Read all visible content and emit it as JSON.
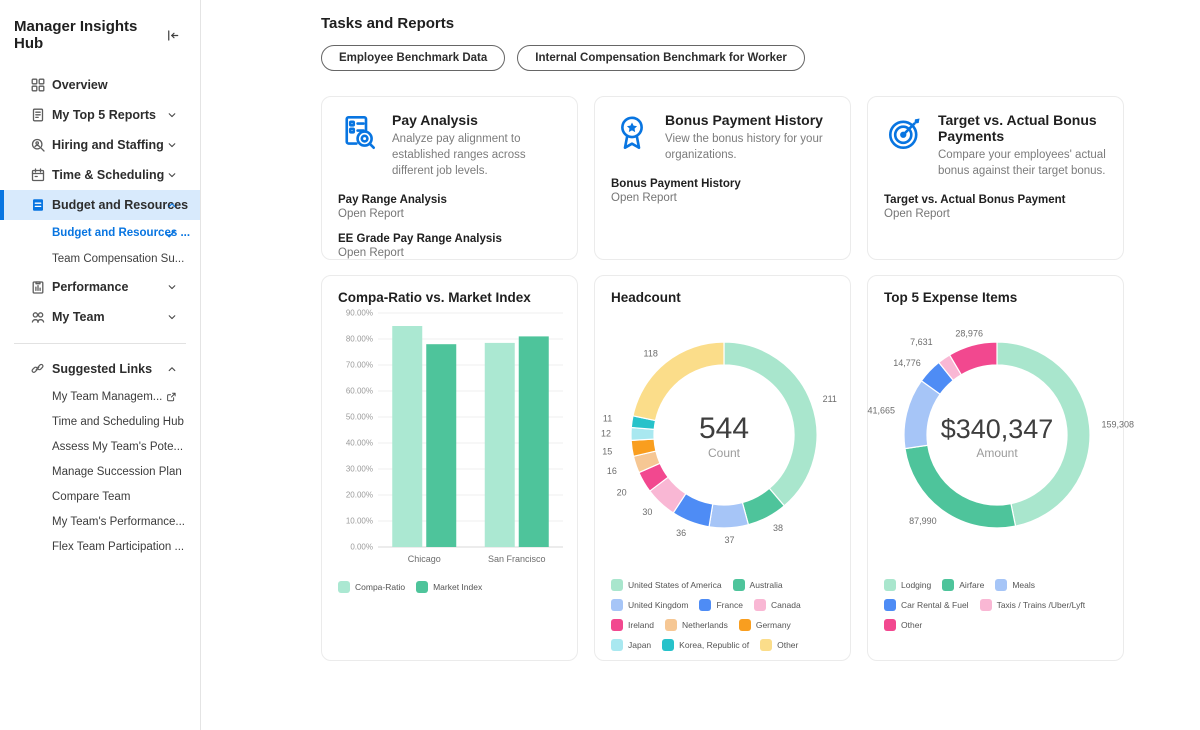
{
  "colors": {
    "accent": "#0875e1",
    "selected_bg": "#d8eafc"
  },
  "sidebar": {
    "title": "Manager Insights Hub",
    "collapse_icon": "collapse-left-icon",
    "nav": [
      {
        "label": "Overview",
        "icon": "grid-icon",
        "chevron": null,
        "selected": false
      },
      {
        "label": "My Top 5 Reports",
        "icon": "report-icon",
        "chevron": "down",
        "selected": false
      },
      {
        "label": "Hiring and Staffing",
        "icon": "search-person-icon",
        "chevron": "down",
        "selected": false
      },
      {
        "label": "Time & Scheduling",
        "icon": "calendar-icon",
        "chevron": "down",
        "selected": false
      },
      {
        "label": "Budget and Resources",
        "icon": "document-icon",
        "chevron": "up",
        "selected": true,
        "children": [
          {
            "label": "Budget and Resources ...",
            "active": true,
            "check": true
          },
          {
            "label": "Team Compensation Su...",
            "active": false,
            "check": false
          }
        ]
      },
      {
        "label": "Performance",
        "icon": "clipboard-icon",
        "chevron": "down",
        "selected": false
      },
      {
        "label": "My Team",
        "icon": "people-icon",
        "chevron": "down",
        "selected": false
      }
    ],
    "suggested": {
      "label": "Suggested Links",
      "icon": "link-icon",
      "chevron": "up",
      "links": [
        {
          "label": "My Team Managem...",
          "external": true
        },
        {
          "label": "Time and Scheduling Hub",
          "external": false
        },
        {
          "label": "Assess My Team's Pote...",
          "external": false
        },
        {
          "label": "Manage Succession Plan",
          "external": false
        },
        {
          "label": "Compare Team",
          "external": false
        },
        {
          "label": "My Team's Performance...",
          "external": false
        },
        {
          "label": "Flex Team Participation ...",
          "external": false
        }
      ]
    }
  },
  "main": {
    "heading": "Tasks and Reports",
    "task_buttons": [
      {
        "label": "Employee Benchmark Data"
      },
      {
        "label": "Internal Compensation Benchmark for Worker"
      }
    ],
    "report_cards": [
      {
        "icon": "pay-analysis-icon",
        "title": "Pay Analysis",
        "description": "Analyze pay alignment to established ranges across different job levels.",
        "reports": [
          {
            "name": "Pay Range Analysis",
            "action": "Open Report"
          },
          {
            "name": "EE Grade Pay Range Analysis",
            "action": "Open Report"
          }
        ]
      },
      {
        "icon": "award-icon",
        "title": "Bonus Payment History",
        "description": "View the bonus history for your organizations.",
        "reports": [
          {
            "name": "Bonus Payment History",
            "action": "Open Report"
          }
        ]
      },
      {
        "icon": "target-icon",
        "title": "Target vs. Actual Bonus Payments",
        "description": "Compare your employees' actual bonus against their target bonus.",
        "reports": [
          {
            "name": "Target vs. Actual Bonus Payment",
            "action": "Open Report"
          }
        ]
      }
    ]
  },
  "chart_data": [
    {
      "type": "bar",
      "title": "Compa-Ratio vs. Market Index",
      "categories": [
        "Chicago",
        "San Francisco"
      ],
      "series": [
        {
          "name": "Compa-Ratio",
          "color": "#abe8d2",
          "values": [
            85,
            78.5
          ]
        },
        {
          "name": "Market Index",
          "color": "#4ec49b",
          "values": [
            78,
            81
          ]
        }
      ],
      "ylim": [
        0,
        90
      ],
      "ytick_step": 10,
      "yticks": [
        "0.00%",
        "10.00%",
        "20.00%",
        "30.00%",
        "40.00%",
        "50.00%",
        "60.00%",
        "70.00%",
        "80.00%",
        "90.00%"
      ],
      "grid": true,
      "legend_position": "bottom"
    },
    {
      "type": "pie",
      "title": "Headcount",
      "center_value": "544",
      "center_label": "Count",
      "center_size": 30,
      "slices": [
        {
          "label": "United States of America",
          "value": 211,
          "display": "211",
          "color": "#a9e6cd"
        },
        {
          "label": "Australia",
          "value": 38,
          "display": "38",
          "color": "#4ec49b"
        },
        {
          "label": "United Kingdom",
          "value": 37,
          "display": "37",
          "color": "#a6c5f7"
        },
        {
          "label": "France",
          "value": 36,
          "display": "36",
          "color": "#4e8cf5"
        },
        {
          "label": "Canada",
          "value": 30,
          "display": "30",
          "color": "#f9b7d4"
        },
        {
          "label": "Ireland",
          "value": 20,
          "display": "20",
          "color": "#f2488f"
        },
        {
          "label": "Netherlands",
          "value": 16,
          "display": "16",
          "color": "#f6c794"
        },
        {
          "label": "Germany",
          "value": 15,
          "display": "15",
          "color": "#f99e1f"
        },
        {
          "label": "Japan",
          "value": 12,
          "display": "12",
          "color": "#a9e8f0"
        },
        {
          "label": "Korea, Republic of",
          "value": 11,
          "display": "11",
          "color": "#27c2ca"
        },
        {
          "label": "Other",
          "value": 118,
          "display": "118",
          "color": "#fbdd8a"
        }
      ],
      "legend_position": "bottom"
    },
    {
      "type": "pie",
      "title": "Top 5 Expense Items",
      "center_value": "$340,347",
      "center_label": "Amount",
      "center_size": 27,
      "slices": [
        {
          "label": "Lodging",
          "value": 159308,
          "display": "159,308",
          "color": "#a9e6cd"
        },
        {
          "label": "Airfare",
          "value": 87990,
          "display": "87,990",
          "color": "#4ec49b"
        },
        {
          "label": "Meals",
          "value": 41665,
          "display": "41,665",
          "color": "#a6c5f7"
        },
        {
          "label": "Car Rental & Fuel",
          "value": 14776,
          "display": "14,776",
          "color": "#4e8cf5"
        },
        {
          "label": "Taxis / Trains /Uber/Lyft",
          "value": 7631,
          "display": "7,631",
          "color": "#f9b7d4"
        },
        {
          "label": "Other",
          "value": 28976,
          "display": "28,976",
          "color": "#f2488f"
        }
      ],
      "legend_position": "bottom"
    }
  ]
}
